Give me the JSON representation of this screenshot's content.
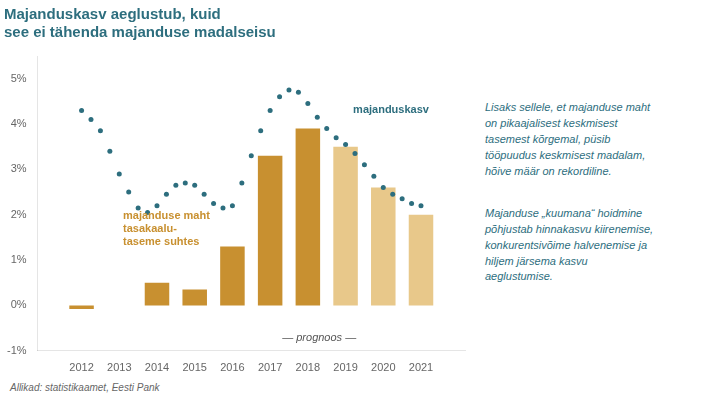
{
  "chart_data": {
    "type": "bar",
    "title": [
      "Majanduskasv aeglustub, kuid",
      "see ei tähenda majanduse madalseisu"
    ],
    "title_color": "#2d6e7e",
    "series": [
      {
        "type": "bar",
        "x": [
          2012,
          2013,
          2014,
          2015,
          2016,
          2017,
          2018,
          2019,
          2020,
          2021
        ],
        "values": [
          -0.08,
          0.0,
          0.5,
          0.35,
          1.3,
          3.3,
          3.9,
          3.5,
          2.6,
          2.0
        ],
        "colors": [
          "#c89030",
          "#c89030",
          "#c89030",
          "#c89030",
          "#c89030",
          "#c89030",
          "#c89030",
          "#e8c88a",
          "#e8c88a",
          "#e8c88a"
        ]
      },
      {
        "type": "scatter",
        "marker": "circle",
        "color": "#2d6e7e",
        "x": [
          2012,
          2012.25,
          2012.5,
          2012.75,
          2013,
          2013.25,
          2013.5,
          2013.75,
          2014,
          2014.25,
          2014.5,
          2014.75,
          2015,
          2015.25,
          2015.5,
          2015.75,
          2016,
          2016.25,
          2016.5,
          2016.75,
          2017,
          2017.25,
          2017.5,
          2017.75,
          2018,
          2018.25,
          2018.5,
          2018.75,
          2019,
          2019.25,
          2019.5,
          2019.75,
          2020,
          2020.25,
          2020.5,
          2020.75,
          2021
        ],
        "values": [
          4.3,
          4.1,
          3.85,
          3.4,
          2.9,
          2.5,
          2.15,
          2.05,
          2.2,
          2.45,
          2.65,
          2.7,
          2.65,
          2.45,
          2.25,
          2.15,
          2.2,
          2.7,
          3.3,
          3.85,
          4.3,
          4.6,
          4.75,
          4.7,
          4.45,
          4.15,
          3.9,
          3.7,
          3.55,
          3.35,
          3.1,
          2.85,
          2.6,
          2.45,
          2.35,
          2.25,
          2.2
        ]
      }
    ],
    "xlim": [
      2011.4,
      2021.6
    ],
    "xticks": [
      2012,
      2013,
      2014,
      2015,
      2016,
      2017,
      2018,
      2019,
      2020,
      2021
    ],
    "ylim": [
      -1.0,
      5.5
    ],
    "yticks": [
      {
        "value": -1,
        "label": "-1%"
      },
      {
        "value": 0,
        "label": "0%"
      },
      {
        "value": 1,
        "label": "1%"
      },
      {
        "value": 2,
        "label": "2%"
      },
      {
        "value": 3,
        "label": "3%"
      },
      {
        "value": 4,
        "label": "4%"
      },
      {
        "value": 5,
        "label": "5%"
      }
    ],
    "grid": false,
    "legend": false,
    "annotations": [
      {
        "text": [
          "majanduse maht",
          "tasakaalu-",
          "taseme suhtes"
        ],
        "x": 2013.1,
        "y": 2.1,
        "color": "#c89030"
      },
      {
        "text": [
          "majanduskasv"
        ],
        "x": 2019.2,
        "y": 4.3,
        "color": "#2d6e7e"
      },
      {
        "text": [
          "— prognoos —"
        ],
        "x": 2018.3,
        "y": -0.72,
        "color": "#555555"
      }
    ],
    "notes": [
      {
        "lines": [
          "Lisaks sellele, et majanduse maht",
          "on pikaajalisest keskmisest",
          "tasemest kõrgemal, püsib",
          "tööpuudus keskmisest madalam,",
          "hõive määr on rekordiline."
        ],
        "color": "#2d6e7e"
      },
      {
        "lines": [
          "Majanduse „kuumana“ hoidmine",
          "põhjustab hinnakasvu kiirenemise,",
          "konkurentsivõime halvenemise ja",
          "hiljem järsema kasvu",
          "aeglustumise."
        ],
        "color": "#2d6e7e"
      }
    ],
    "source": "Allikad: statistikaamet, Eesti Pank"
  }
}
